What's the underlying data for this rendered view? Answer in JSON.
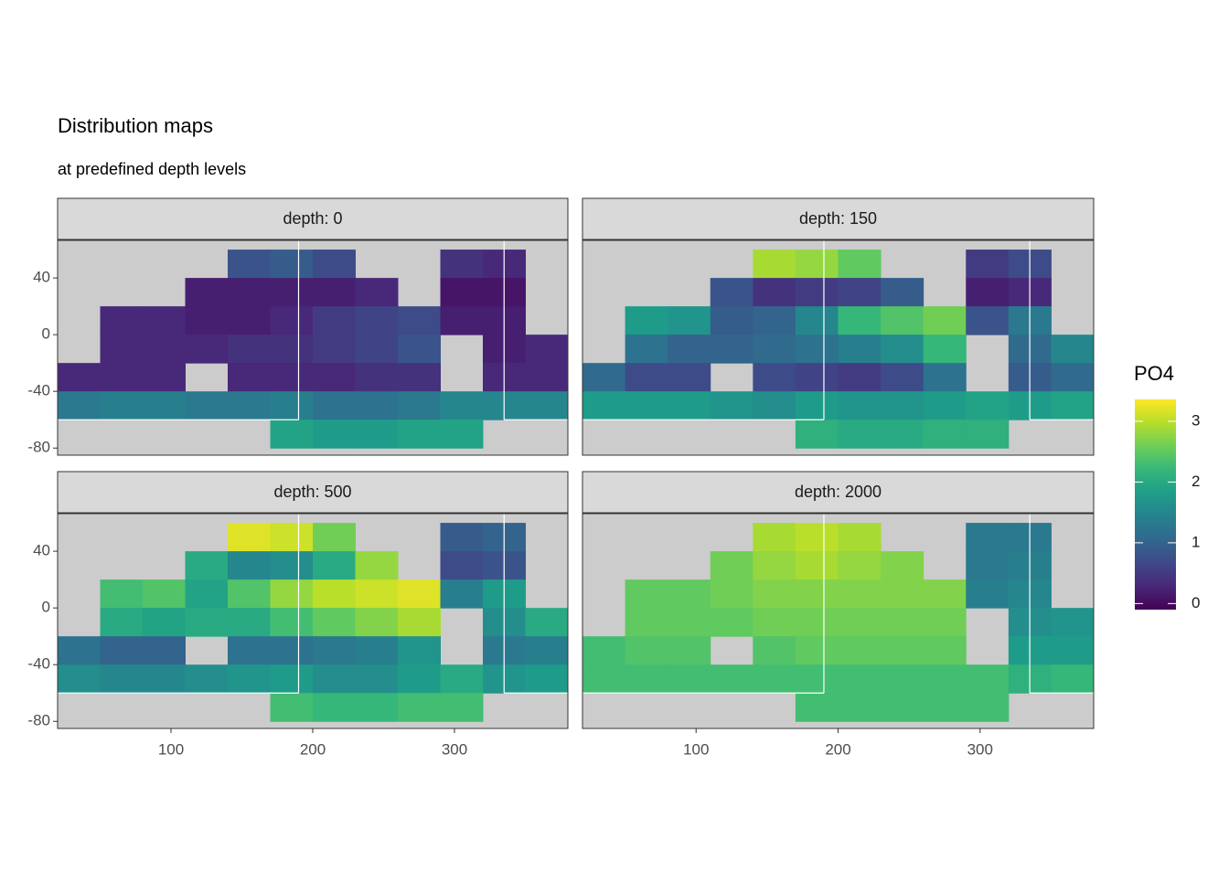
{
  "chart_data": {
    "type": "raster",
    "title": "Distribution maps",
    "subtitle": "at predefined depth levels",
    "legend_title": "PO4",
    "colormap": [
      "#440154",
      "#482878",
      "#3e4989",
      "#31688e",
      "#26828e",
      "#1f9e89",
      "#35b779",
      "#6ece58",
      "#b5de2b",
      "#fde725"
    ],
    "clim": [
      -0.1,
      3.36
    ],
    "legend_ticks": [
      0,
      1,
      2,
      3
    ],
    "land_color": "#cccccc",
    "xlim": [
      20,
      380
    ],
    "ylim": [
      -85,
      66.5
    ],
    "xticks": [
      100,
      200,
      300
    ],
    "yticks": [
      40,
      0,
      -40,
      -80
    ],
    "section_lines": {
      "x": [
        190,
        335
      ],
      "y": -60,
      "color": "#ffffff"
    },
    "cell_x": [
      35,
      65,
      95,
      125,
      155,
      185,
      215,
      245,
      275,
      305,
      335,
      365
    ],
    "cell_y": [
      50,
      30,
      10,
      -10,
      -30,
      -50,
      -70
    ],
    "facets": [
      {
        "label": "depth: 0",
        "values": [
          [
            null,
            null,
            null,
            null,
            0.8,
            0.9,
            0.7,
            null,
            null,
            0.4,
            0.3,
            null
          ],
          [
            null,
            null,
            null,
            0.2,
            0.2,
            0.2,
            0.2,
            0.3,
            null,
            0.1,
            0.1,
            null
          ],
          [
            null,
            0.3,
            0.3,
            0.2,
            0.2,
            0.3,
            0.5,
            0.6,
            0.7,
            0.2,
            0.2,
            null
          ],
          [
            null,
            0.3,
            0.3,
            0.3,
            0.4,
            0.4,
            0.5,
            0.6,
            0.8,
            null,
            0.2,
            0.3
          ],
          [
            0.3,
            0.3,
            0.3,
            null,
            0.3,
            0.3,
            0.3,
            0.4,
            0.4,
            null,
            0.3,
            0.3
          ],
          [
            1.3,
            1.4,
            1.4,
            1.3,
            1.3,
            1.4,
            1.2,
            1.2,
            1.3,
            1.5,
            1.5,
            1.5
          ],
          [
            null,
            null,
            null,
            null,
            null,
            1.9,
            1.8,
            1.8,
            1.9,
            1.9,
            null,
            null
          ]
        ]
      },
      {
        "label": "depth: 150",
        "values": [
          [
            null,
            null,
            null,
            null,
            2.9,
            2.8,
            2.5,
            null,
            null,
            0.5,
            0.7,
            null
          ],
          [
            null,
            null,
            null,
            0.8,
            0.4,
            0.5,
            0.6,
            0.9,
            null,
            0.2,
            0.3,
            null
          ],
          [
            null,
            1.8,
            1.7,
            0.9,
            1.0,
            1.5,
            2.2,
            2.4,
            2.6,
            0.8,
            1.3,
            null
          ],
          [
            null,
            1.2,
            1.0,
            1.0,
            1.1,
            1.2,
            1.4,
            1.6,
            2.2,
            null,
            1.1,
            1.5
          ],
          [
            1.1,
            0.7,
            0.7,
            null,
            0.7,
            0.6,
            0.5,
            0.7,
            1.2,
            null,
            0.9,
            1.1
          ],
          [
            1.8,
            1.8,
            1.8,
            1.7,
            1.6,
            1.8,
            1.7,
            1.7,
            1.8,
            1.9,
            1.8,
            1.9
          ],
          [
            null,
            null,
            null,
            null,
            null,
            2.1,
            2.0,
            2.0,
            2.1,
            2.1,
            null,
            null
          ]
        ]
      },
      {
        "label": "depth: 500",
        "values": [
          [
            null,
            null,
            null,
            null,
            3.2,
            3.1,
            2.6,
            null,
            null,
            0.9,
            1.0,
            null
          ],
          [
            null,
            null,
            null,
            2.0,
            1.5,
            1.6,
            2.0,
            2.8,
            null,
            0.7,
            0.8,
            null
          ],
          [
            null,
            2.3,
            2.4,
            1.9,
            2.4,
            2.8,
            3.0,
            3.1,
            3.2,
            1.4,
            1.8,
            null
          ],
          [
            null,
            2.0,
            1.9,
            2.0,
            2.0,
            2.3,
            2.5,
            2.7,
            2.9,
            null,
            1.6,
            2.0
          ],
          [
            1.2,
            1.0,
            1.0,
            null,
            1.2,
            1.2,
            1.3,
            1.4,
            1.7,
            null,
            1.3,
            1.4
          ],
          [
            1.6,
            1.5,
            1.5,
            1.6,
            1.7,
            1.8,
            1.6,
            1.6,
            1.8,
            2.0,
            1.7,
            1.8
          ],
          [
            null,
            null,
            null,
            null,
            null,
            2.3,
            2.2,
            2.2,
            2.3,
            2.3,
            null,
            null
          ]
        ]
      },
      {
        "label": "depth: 2000",
        "values": [
          [
            null,
            null,
            null,
            null,
            2.9,
            3.0,
            2.9,
            null,
            null,
            1.3,
            1.3,
            null
          ],
          [
            null,
            null,
            null,
            2.6,
            2.8,
            2.9,
            2.8,
            2.7,
            null,
            1.3,
            1.4,
            null
          ],
          [
            null,
            2.5,
            2.5,
            2.6,
            2.7,
            2.7,
            2.7,
            2.7,
            2.7,
            1.4,
            1.5,
            null
          ],
          [
            null,
            2.5,
            2.5,
            2.5,
            2.6,
            2.6,
            2.6,
            2.6,
            2.6,
            null,
            1.6,
            1.7
          ],
          [
            2.3,
            2.4,
            2.4,
            null,
            2.4,
            2.5,
            2.5,
            2.5,
            2.5,
            null,
            1.8,
            1.8
          ],
          [
            2.3,
            2.3,
            2.3,
            2.3,
            2.3,
            2.3,
            2.3,
            2.3,
            2.3,
            2.3,
            2.1,
            2.2
          ],
          [
            null,
            null,
            null,
            null,
            null,
            2.3,
            2.3,
            2.3,
            2.3,
            2.3,
            null,
            null
          ]
        ]
      }
    ]
  }
}
